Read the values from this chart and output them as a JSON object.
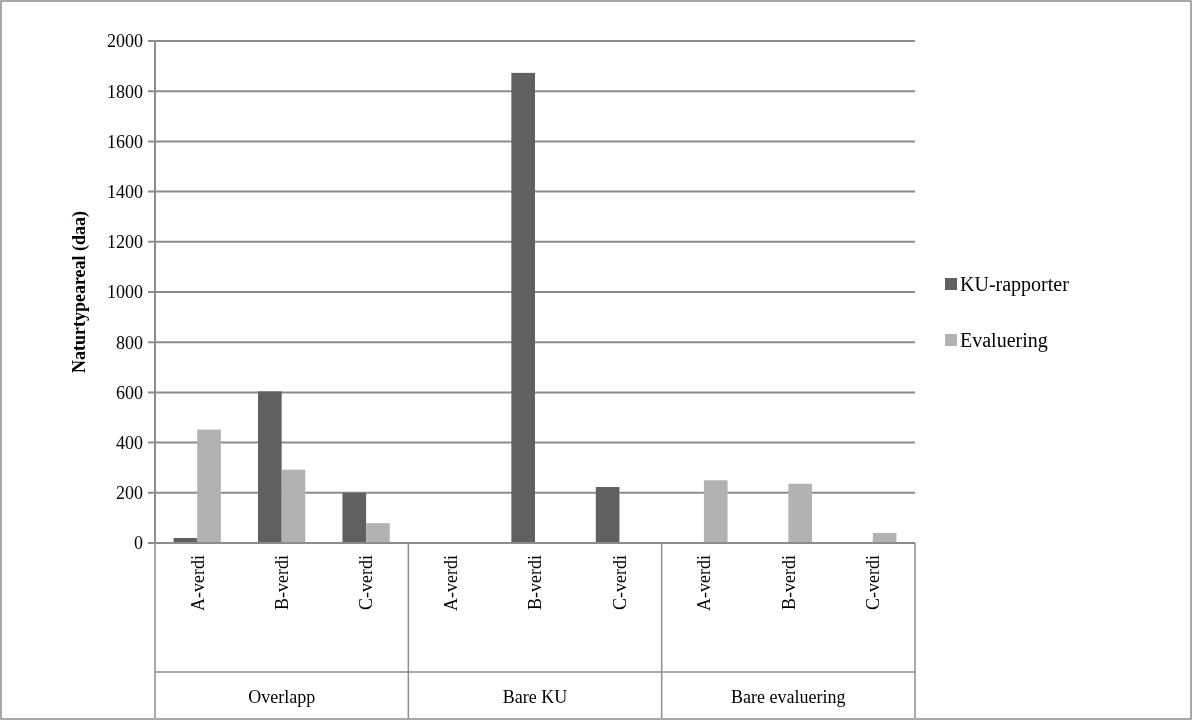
{
  "chart_data": {
    "type": "bar",
    "ylabel": "Naturtypeareal (daa)",
    "categories": [
      "A-verdi",
      "B-verdi",
      "C-verdi",
      "A-verdi",
      "B-verdi",
      "C-verdi",
      "A-verdi",
      "B-verdi",
      "C-verdi"
    ],
    "annotations": [
      "Overlapp",
      "Bare KU",
      "Bare evaluering"
    ],
    "series": [
      {
        "name": "KU-rapporter",
        "color": "#606060",
        "values": [
          20,
          604,
          200,
          0,
          1873,
          223,
          0,
          0,
          0
        ]
      },
      {
        "name": "Evaluering",
        "color": "#b2b2b2",
        "values": [
          452,
          292,
          79,
          0,
          0,
          0,
          250,
          236,
          40
        ]
      }
    ],
    "ylim": [
      0,
      2000
    ],
    "yticks": [
      0,
      200,
      400,
      600,
      800,
      1000,
      1200,
      1400,
      1600,
      1800,
      2000
    ],
    "grid": "y",
    "legend": "right"
  }
}
